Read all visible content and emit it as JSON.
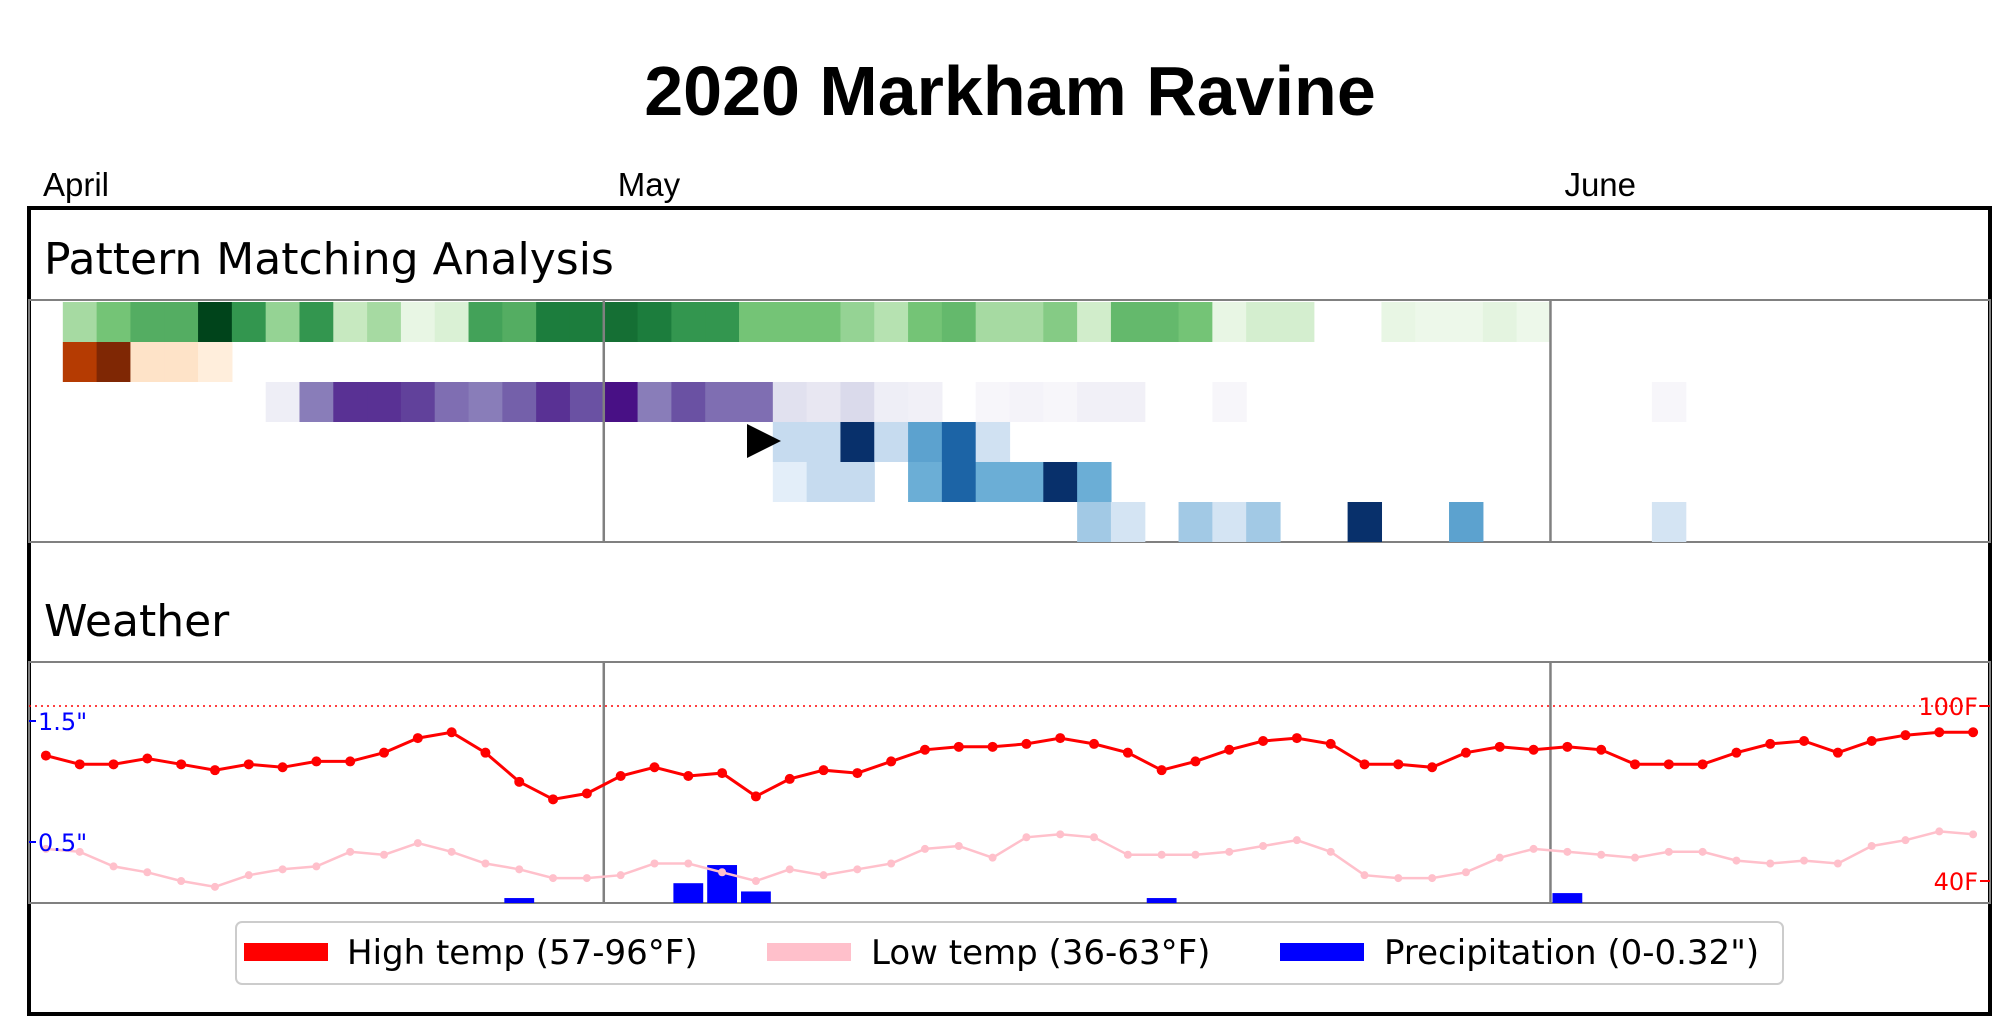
{
  "title": "2020 Markham Ravine",
  "months": [
    {
      "label": "April",
      "day": 0
    },
    {
      "label": "May",
      "day": 17
    },
    {
      "label": "June",
      "day": 45
    }
  ],
  "sections": {
    "pattern": "Pattern Matching Analysis",
    "weather": "Weather"
  },
  "colors": {
    "high_temp": "#ff0000",
    "low_temp": "#ffc0cb",
    "precip": "#0000ff",
    "row_greens": "green",
    "row_oranges": "orange",
    "row_purples": "purple",
    "row_blues": "blue"
  },
  "chart_data": {
    "type": "heatmap",
    "days": 58,
    "heatmap_rows": [
      {
        "cmap": "greens",
        "cells": [
          [
            1,
            0.35
          ],
          [
            2,
            0.5
          ],
          [
            3,
            0.6
          ],
          [
            4,
            0.6
          ],
          [
            5,
            1.0
          ],
          [
            6,
            0.7
          ],
          [
            7,
            0.4
          ],
          [
            8,
            0.7
          ],
          [
            9,
            0.25
          ],
          [
            10,
            0.35
          ],
          [
            11,
            0.08
          ],
          [
            12,
            0.15
          ],
          [
            13,
            0.65
          ],
          [
            14,
            0.6
          ],
          [
            15,
            0.8
          ],
          [
            16,
            0.8
          ],
          [
            17,
            0.85
          ],
          [
            18,
            0.8
          ],
          [
            19,
            0.7
          ],
          [
            20,
            0.7
          ],
          [
            21,
            0.5
          ],
          [
            22,
            0.5
          ],
          [
            23,
            0.5
          ],
          [
            24,
            0.4
          ],
          [
            25,
            0.3
          ],
          [
            26,
            0.5
          ],
          [
            27,
            0.55
          ],
          [
            28,
            0.35
          ],
          [
            29,
            0.35
          ],
          [
            30,
            0.45
          ],
          [
            31,
            0.2
          ],
          [
            32,
            0.55
          ],
          [
            33,
            0.55
          ],
          [
            34,
            0.5
          ],
          [
            35,
            0.08
          ],
          [
            36,
            0.18
          ],
          [
            37,
            0.18
          ],
          [
            40,
            0.08
          ],
          [
            41,
            0.05
          ],
          [
            42,
            0.05
          ],
          [
            43,
            0.1
          ],
          [
            44,
            0.05
          ]
        ]
      },
      {
        "cmap": "oranges",
        "cells": [
          [
            1,
            0.85
          ],
          [
            2,
            1.0
          ],
          [
            3,
            0.12
          ],
          [
            4,
            0.12
          ],
          [
            5,
            0.05
          ]
        ]
      },
      {
        "cmap": "purples",
        "cells": [
          [
            7,
            0.1
          ],
          [
            8,
            0.6
          ],
          [
            9,
            0.85
          ],
          [
            10,
            0.85
          ],
          [
            11,
            0.8
          ],
          [
            12,
            0.65
          ],
          [
            13,
            0.6
          ],
          [
            14,
            0.7
          ],
          [
            15,
            0.85
          ],
          [
            16,
            0.75
          ],
          [
            17,
            0.95
          ],
          [
            18,
            0.6
          ],
          [
            19,
            0.75
          ],
          [
            20,
            0.65
          ],
          [
            21,
            0.65
          ],
          [
            22,
            0.2
          ],
          [
            23,
            0.15
          ],
          [
            24,
            0.25
          ],
          [
            25,
            0.1
          ],
          [
            26,
            0.08
          ],
          [
            28,
            0.04
          ],
          [
            29,
            0.06
          ],
          [
            30,
            0.04
          ],
          [
            31,
            0.08
          ],
          [
            32,
            0.08
          ],
          [
            35,
            0.04
          ],
          [
            48,
            0.04
          ]
        ]
      },
      {
        "cmap": "blues",
        "marker_day": 21,
        "cells": [
          [
            22,
            0.25
          ],
          [
            23,
            0.25
          ],
          [
            24,
            1.0
          ],
          [
            25,
            0.25
          ],
          [
            26,
            0.55
          ],
          [
            27,
            0.8
          ],
          [
            28,
            0.2
          ]
        ]
      },
      {
        "cmap": "blues",
        "cells": [
          [
            22,
            0.1
          ],
          [
            23,
            0.25
          ],
          [
            24,
            0.25
          ],
          [
            26,
            0.5
          ],
          [
            27,
            0.8
          ],
          [
            28,
            0.5
          ],
          [
            29,
            0.5
          ],
          [
            30,
            1.0
          ],
          [
            31,
            0.5
          ]
        ]
      },
      {
        "cmap": "blues",
        "cells": [
          [
            31,
            0.35
          ],
          [
            32,
            0.18
          ],
          [
            34,
            0.35
          ],
          [
            35,
            0.18
          ],
          [
            36,
            0.35
          ],
          [
            39,
            1.0
          ],
          [
            42,
            0.55
          ],
          [
            48,
            0.18
          ]
        ]
      }
    ],
    "high_temp": [
      83,
      80,
      80,
      82,
      80,
      78,
      80,
      79,
      81,
      81,
      84,
      89,
      91,
      84,
      74,
      68,
      70,
      76,
      79,
      76,
      77,
      69,
      75,
      78,
      77,
      81,
      85,
      86,
      86,
      87,
      89,
      87,
      84,
      78,
      81,
      85,
      88,
      89,
      87,
      80,
      80,
      79,
      84,
      86,
      85,
      86,
      85,
      80,
      80,
      80,
      84,
      87,
      88,
      84,
      88,
      90,
      91,
      91
    ],
    "low_temp": [
      51,
      50,
      45,
      43,
      40,
      38,
      42,
      44,
      45,
      50,
      49,
      53,
      50,
      46,
      44,
      41,
      41,
      42,
      46,
      46,
      43,
      40,
      44,
      42,
      44,
      46,
      51,
      52,
      48,
      55,
      56,
      55,
      49,
      49,
      49,
      50,
      52,
      54,
      50,
      42,
      41,
      41,
      43,
      48,
      51,
      50,
      49,
      48,
      50,
      50,
      47,
      46,
      47,
      46,
      52,
      54,
      57,
      56
    ],
    "precip": [
      0,
      0,
      0,
      0,
      0,
      0,
      0,
      0,
      0,
      0,
      0,
      0,
      0,
      0,
      0.03,
      0,
      0,
      0,
      0,
      0.12,
      0.23,
      0.07,
      0,
      0,
      0,
      0,
      0,
      0,
      0,
      0,
      0,
      0,
      0,
      0.03,
      0,
      0,
      0,
      0,
      0,
      0,
      0,
      0,
      0,
      0,
      0,
      0.06,
      0,
      0,
      0,
      0,
      0,
      0,
      0,
      0,
      0,
      0,
      0,
      0
    ],
    "temp_axis": {
      "ylim": [
        40,
        100
      ],
      "ticks": [
        "100F",
        "40F"
      ]
    },
    "precip_axis": {
      "ticks": [
        "1.5\"",
        "0.5\""
      ]
    },
    "legend": [
      {
        "label": "High temp (57-96°F)",
        "color": "#ff0000"
      },
      {
        "label": "Low temp (36-63°F)",
        "color": "#ffc0cb"
      },
      {
        "label": "Precipitation (0-0.32\")",
        "color": "#0000ff"
      }
    ]
  }
}
